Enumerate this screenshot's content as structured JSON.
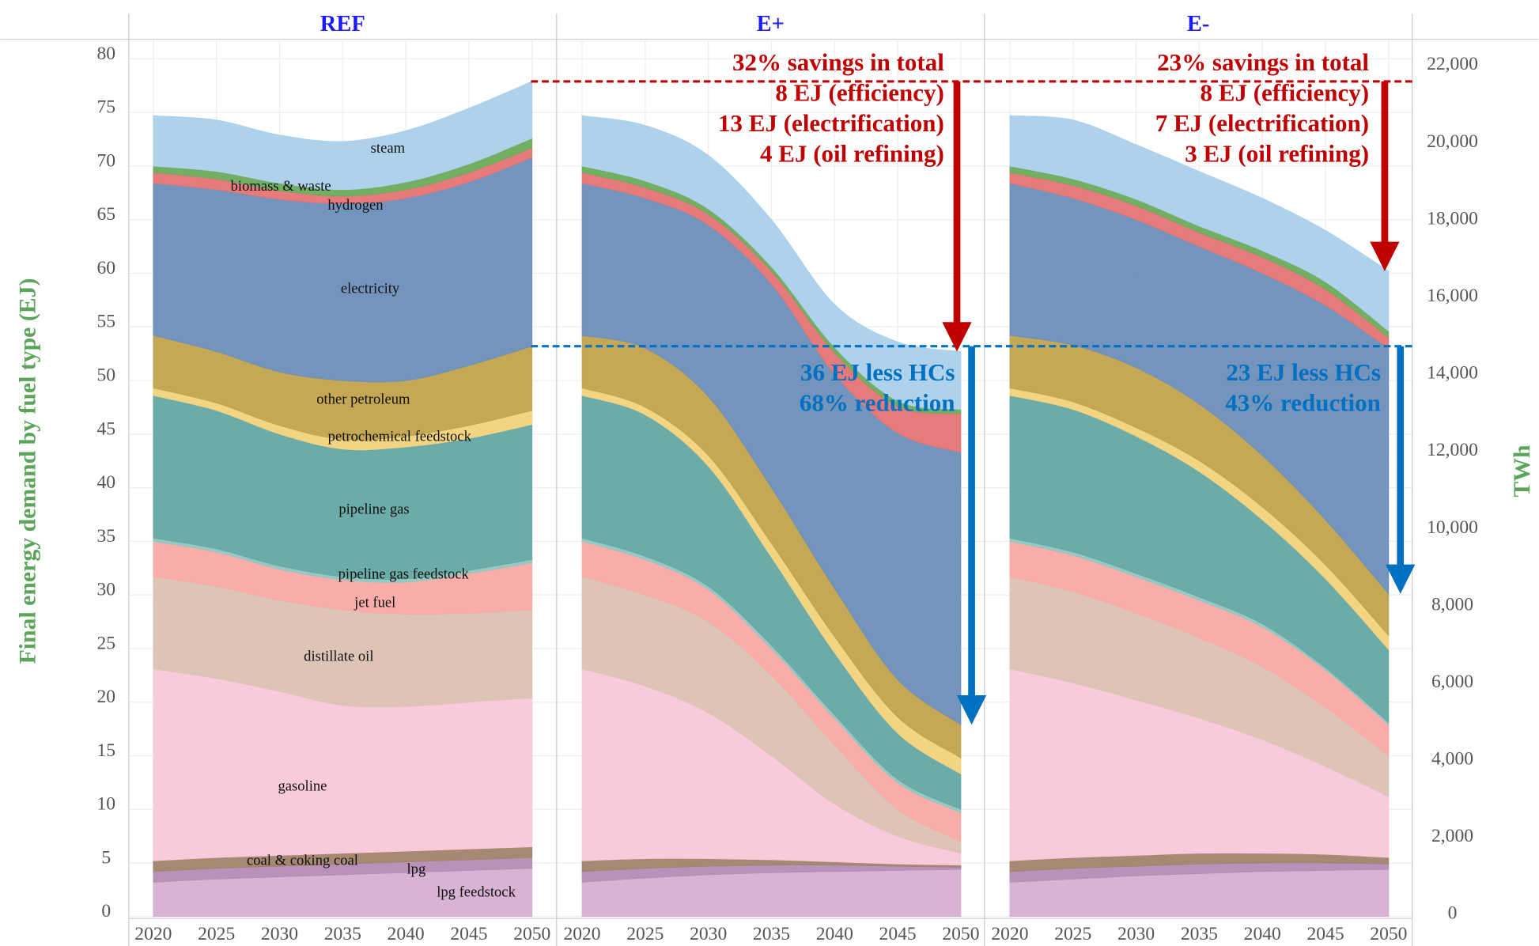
{
  "chart_data": {
    "type": "area",
    "stacked": true,
    "ylabel": "Final energy demand by fuel type (EJ)",
    "y2label": "TWh",
    "x": [
      2020,
      2025,
      2030,
      2035,
      2040,
      2045,
      2050
    ],
    "ylim": [
      0,
      80
    ],
    "yticks": [
      0,
      5,
      10,
      15,
      20,
      25,
      30,
      35,
      40,
      45,
      50,
      55,
      60,
      65,
      70,
      75,
      80
    ],
    "y2lim": [
      0,
      22222.2
    ],
    "y2ticks": [
      0,
      {
        "value": 2000,
        "label": "2,000"
      },
      {
        "value": 4000,
        "label": "4,000"
      },
      {
        "value": 6000,
        "label": "6,000"
      },
      {
        "value": 8000,
        "label": "8,000"
      },
      {
        "value": 10000,
        "label": "10,000"
      },
      {
        "value": 12000,
        "label": "12,000"
      },
      {
        "value": 14000,
        "label": "14,000"
      },
      {
        "value": 16000,
        "label": "16,000"
      },
      {
        "value": 18000,
        "label": "18,000"
      },
      {
        "value": 20000,
        "label": "20,000"
      },
      {
        "value": 22000,
        "label": "22,000"
      }
    ],
    "grid": true,
    "series": [
      {
        "name": "lpg feedstock",
        "color": "#d6afd2"
      },
      {
        "name": "lpg",
        "color": "#b48cb4"
      },
      {
        "name": "coal & coking coal",
        "color": "#a1826c"
      },
      {
        "name": "gasoline",
        "color": "#f8c7d9"
      },
      {
        "name": "distillate oil",
        "color": "#dcc1b3"
      },
      {
        "name": "jet fuel",
        "color": "#f9a9a5"
      },
      {
        "name": "pipeline gas feedstock",
        "color": "#8ec6c1"
      },
      {
        "name": "pipeline gas",
        "color": "#64a8a3"
      },
      {
        "name": "petrochemical feedstock",
        "color": "#f1d27c"
      },
      {
        "name": "other petroleum",
        "color": "#c1a34c"
      },
      {
        "name": "electricity",
        "color": "#6b8eb8"
      },
      {
        "name": "hydrogen",
        "color": "#e67373"
      },
      {
        "name": "biomass & waste",
        "color": "#6aab5b"
      },
      {
        "name": "steam",
        "color": "#aacfeb"
      }
    ],
    "panels": [
      {
        "title": "REF",
        "values": [
          [
            3.2,
            3.5,
            3.7,
            3.9,
            4.1,
            4.3,
            4.5
          ],
          [
            1.0,
            1.0,
            1.0,
            1.0,
            1.0,
            1.0,
            1.0
          ],
          [
            1.0,
            1.0,
            1.0,
            1.0,
            1.0,
            1.0,
            1.0
          ],
          [
            17.9,
            16.7,
            15.3,
            13.8,
            13.5,
            13.7,
            13.9
          ],
          [
            8.6,
            8.6,
            8.5,
            8.9,
            8.6,
            8.3,
            8.2
          ],
          [
            3.3,
            3.2,
            2.9,
            2.8,
            3.0,
            3.7,
            4.4
          ],
          [
            0.3,
            0.3,
            0.3,
            0.3,
            0.3,
            0.3,
            0.3
          ],
          [
            13.3,
            12.9,
            12.3,
            11.9,
            12.3,
            12.3,
            12.6
          ],
          [
            0.7,
            0.7,
            0.8,
            0.9,
            1.0,
            1.2,
            1.3
          ],
          [
            4.9,
            4.8,
            5.0,
            5.5,
            5.2,
            5.6,
            6.0
          ],
          [
            14.2,
            15.1,
            16.1,
            16.5,
            17.0,
            17.1,
            17.6
          ],
          [
            1.0,
            1.0,
            0.8,
            0.7,
            0.8,
            0.9,
            0.9
          ],
          [
            0.6,
            0.7,
            0.7,
            0.6,
            0.7,
            0.8,
            0.9
          ],
          [
            4.7,
            4.8,
            4.5,
            4.5,
            4.8,
            5.2,
            5.3
          ]
        ]
      },
      {
        "title": "E+",
        "values": [
          [
            3.2,
            3.6,
            3.9,
            4.1,
            4.2,
            4.3,
            4.4
          ],
          [
            1.0,
            0.9,
            0.8,
            0.7,
            0.6,
            0.4,
            0.2
          ],
          [
            1.0,
            0.9,
            0.7,
            0.5,
            0.3,
            0.2,
            0.2
          ],
          [
            17.9,
            16.1,
            13.6,
            9.7,
            5.4,
            2.6,
            1.1
          ],
          [
            8.6,
            8.5,
            8.5,
            7.5,
            5.5,
            2.5,
            1.1
          ],
          [
            3.3,
            3.3,
            3.0,
            2.5,
            2.5,
            2.5,
            2.7
          ],
          [
            0.3,
            0.3,
            0.3,
            0.3,
            0.3,
            0.3,
            0.3
          ],
          [
            13.3,
            13.2,
            11.2,
            8.2,
            5.8,
            4.3,
            3.3
          ],
          [
            0.7,
            0.7,
            1.0,
            1.3,
            1.5,
            1.5,
            1.5
          ],
          [
            4.9,
            5.5,
            5.5,
            5.2,
            4.5,
            3.5,
            3.1
          ],
          [
            14.2,
            14.0,
            16.0,
            19.0,
            20.0,
            23.0,
            25.4
          ],
          [
            1.0,
            1.0,
            1.0,
            1.2,
            2.0,
            2.5,
            3.6
          ],
          [
            0.6,
            0.6,
            0.5,
            0.4,
            0.5,
            0.5,
            0.4
          ],
          [
            4.7,
            5.2,
            5.0,
            4.4,
            4.0,
            5.5,
            5.4
          ]
        ],
        "savings": [
          "32% savings in total",
          "8 EJ (efficiency)",
          "13 EJ (electrification)",
          "4 EJ (oil refining)"
        ],
        "hc": [
          "36 EJ less HCs",
          "68% reduction"
        ]
      },
      {
        "title": "E-",
        "values": [
          [
            3.2,
            3.5,
            3.8,
            4.0,
            4.2,
            4.3,
            4.4
          ],
          [
            1.0,
            1.0,
            0.9,
            0.9,
            0.8,
            0.7,
            0.5
          ],
          [
            1.0,
            1.0,
            1.0,
            1.0,
            0.9,
            0.8,
            0.6
          ],
          [
            17.9,
            16.3,
            14.5,
            12.6,
            10.6,
            8.2,
            5.7
          ],
          [
            8.6,
            8.5,
            8.1,
            7.5,
            6.8,
            5.5,
            3.8
          ],
          [
            3.3,
            3.4,
            3.4,
            3.5,
            3.7,
            3.5,
            2.9
          ],
          [
            0.3,
            0.3,
            0.3,
            0.3,
            0.3,
            0.2,
            0.2
          ],
          [
            13.3,
            13.3,
            12.8,
            11.7,
            9.7,
            8.3,
            6.8
          ],
          [
            0.7,
            0.7,
            0.8,
            1.0,
            1.2,
            1.3,
            1.3
          ],
          [
            4.9,
            5.3,
            5.6,
            5.3,
            4.8,
            4.2,
            3.9
          ],
          [
            14.2,
            13.7,
            13.8,
            14.7,
            17.0,
            20.0,
            22.9
          ],
          [
            1.0,
            1.2,
            1.3,
            1.3,
            1.5,
            1.5,
            1.0
          ],
          [
            0.6,
            0.6,
            0.6,
            0.6,
            0.6,
            0.7,
            0.6
          ],
          [
            4.7,
            5.5,
            5.1,
            5.1,
            4.9,
            4.8,
            5.6
          ]
        ],
        "savings": [
          "23% savings in total",
          "8 EJ (efficiency)",
          "7 EJ (electrification)",
          "3 EJ (oil refining)"
        ],
        "hc": [
          "23 EJ less HCs",
          "43% reduction"
        ]
      }
    ]
  }
}
